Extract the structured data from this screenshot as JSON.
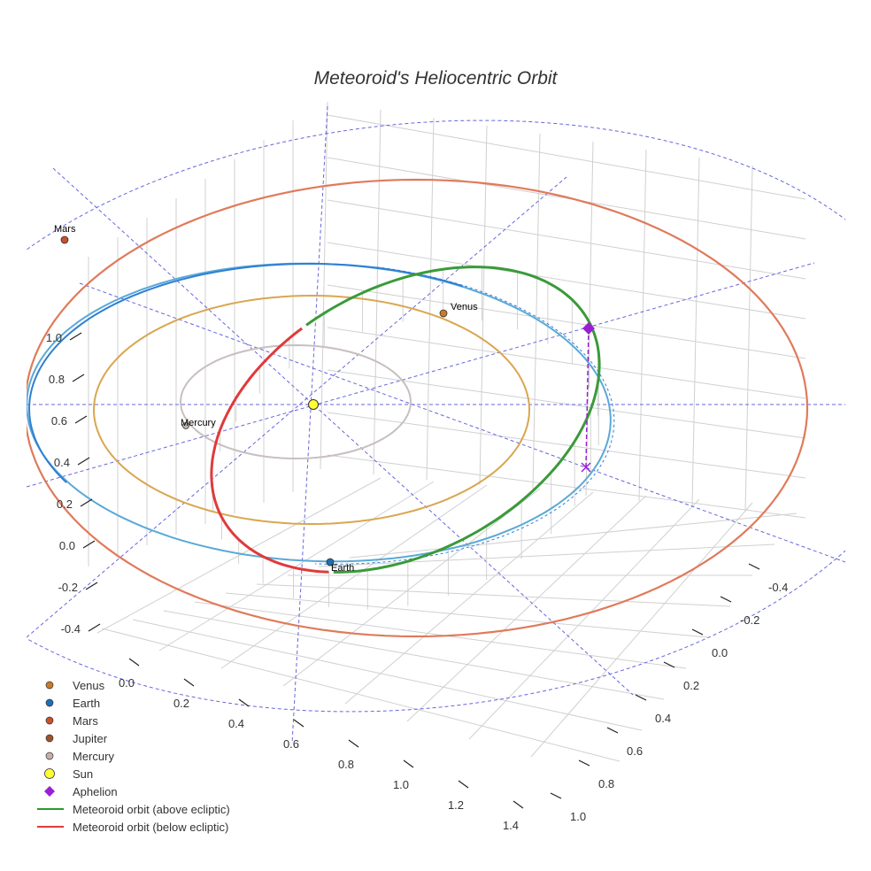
{
  "chart_data": {
    "type": "scatter3d",
    "title": "Meteoroid's Heliocentric Orbit",
    "colors": {
      "venus_orbit": "#d9a650",
      "earth_orbit": "#2f7fd4",
      "earth_orbit_alt": "#5aa9d6",
      "mars_orbit": "#e07a5a",
      "mercury_orbit": "#c8bfbf",
      "meteoroid_above": "#3a9a3a",
      "meteoroid_below": "#e03a3a",
      "aphelion": "#9a1fd4",
      "ecliptic_grid": "#6666dd",
      "sun": "#ffff33"
    },
    "axes": {
      "x": {
        "ticks": [
          "0.0",
          "0.2",
          "0.4",
          "0.6",
          "0.8",
          "1.0",
          "1.2",
          "1.4"
        ]
      },
      "y": {
        "ticks": [
          "-0.4",
          "-0.2",
          "0.0",
          "0.2",
          "0.4",
          "0.6",
          "0.8",
          "1.0"
        ]
      },
      "z": {
        "ticks": [
          "-0.4",
          "-0.2",
          "0.0",
          "0.2",
          "0.4",
          "0.6",
          "0.8",
          "1.0"
        ]
      }
    },
    "planets": [
      {
        "name": "Venus",
        "color": "#c87a2a"
      },
      {
        "name": "Earth",
        "color": "#1f6fb4"
      },
      {
        "name": "Mars",
        "color": "#c8502a"
      },
      {
        "name": "Mercury",
        "color": "#bfb0a8"
      }
    ],
    "legend": [
      {
        "label": "Venus",
        "marker": "dot",
        "color": "#c87a2a"
      },
      {
        "label": "Earth",
        "marker": "dot",
        "color": "#1f6fb4"
      },
      {
        "label": "Mars",
        "marker": "dot",
        "color": "#c8502a"
      },
      {
        "label": "Jupiter",
        "marker": "dot",
        "color": "#a0522d"
      },
      {
        "label": "Mercury",
        "marker": "dot",
        "color": "#c8b0a8"
      },
      {
        "label": "Sun",
        "marker": "sun",
        "color": "#ffff33"
      },
      {
        "label": "Aphelion",
        "marker": "diamond",
        "color": "#9a1fd4"
      },
      {
        "label": "Meteoroid orbit (above ecliptic)",
        "marker": "line",
        "color": "#2a9a2a"
      },
      {
        "label": "Meteoroid orbit (below ecliptic)",
        "marker": "line",
        "color": "#e03a3a"
      }
    ]
  }
}
